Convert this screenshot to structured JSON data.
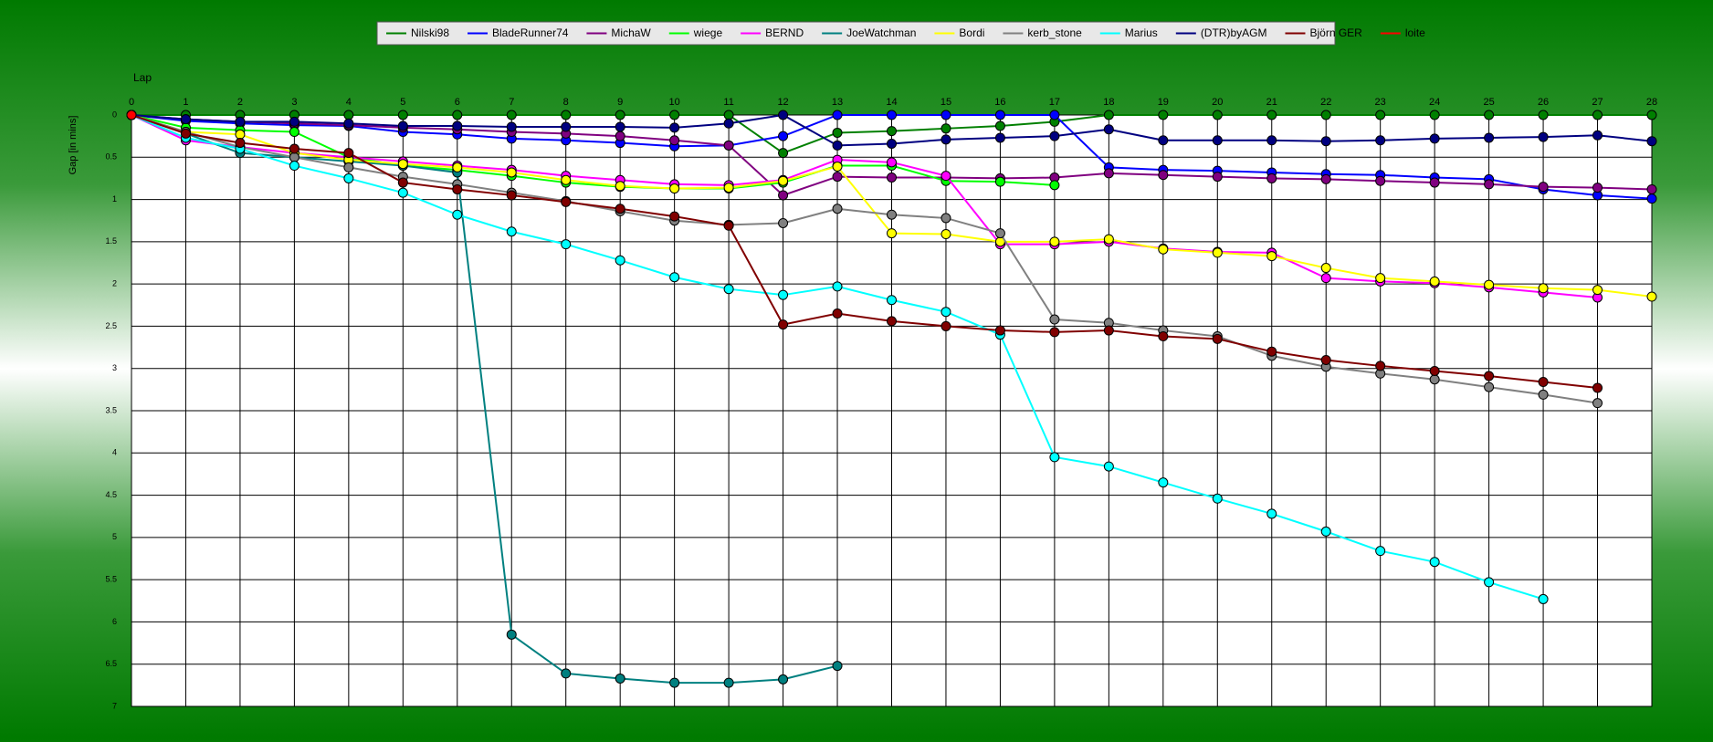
{
  "chart_data": {
    "type": "line",
    "x_label": "Lap",
    "y_label": "Gap [in mins]",
    "x": [
      0,
      1,
      2,
      3,
      4,
      5,
      6,
      7,
      8,
      9,
      10,
      11,
      12,
      13,
      14,
      15,
      16,
      17,
      18,
      19,
      20,
      21,
      22,
      23,
      24,
      25,
      26,
      27,
      28
    ],
    "xlim": [
      0,
      28
    ],
    "xticks": [
      0,
      1,
      2,
      3,
      4,
      5,
      6,
      7,
      8,
      9,
      10,
      11,
      12,
      13,
      14,
      15,
      16,
      17,
      18,
      19,
      20,
      21,
      22,
      23,
      24,
      25,
      26,
      27,
      28
    ],
    "ylim": [
      0,
      7
    ],
    "yticks": [
      0,
      0.5,
      1,
      1.5,
      2,
      2.5,
      3,
      3.5,
      4,
      4.5,
      5,
      5.5,
      6,
      6.5,
      7
    ],
    "y_inverted": true,
    "grid": true,
    "legend": "top",
    "series": [
      {
        "name": "Nilski98",
        "color": "#008000",
        "values": [
          0,
          0,
          0,
          0,
          0,
          0,
          0,
          0,
          0,
          0,
          0,
          0,
          0.45,
          0.21,
          0.19,
          0.16,
          0.13,
          0.08,
          0,
          0,
          0,
          0,
          0,
          0,
          0,
          0,
          0,
          0,
          0
        ]
      },
      {
        "name": "BladeRunner74",
        "color": "#0000ff",
        "values": [
          0,
          0.07,
          0.1,
          0.12,
          0.13,
          0.2,
          0.23,
          0.28,
          0.3,
          0.33,
          0.37,
          0.36,
          0.25,
          0,
          0,
          0,
          0,
          0,
          0.62,
          0.65,
          0.66,
          0.68,
          0.7,
          0.71,
          0.74,
          0.76,
          0.88,
          0.95,
          0.99
        ]
      },
      {
        "name": "MichaW",
        "color": "#800080",
        "values": [
          0,
          0.05,
          0.08,
          0.1,
          0.12,
          0.15,
          0.17,
          0.2,
          0.22,
          0.25,
          0.3,
          0.36,
          0.95,
          0.73,
          0.74,
          0.74,
          0.75,
          0.74,
          0.69,
          0.71,
          0.73,
          0.75,
          0.76,
          0.78,
          0.8,
          0.82,
          0.85,
          0.86,
          0.88
        ]
      },
      {
        "name": "wiege",
        "color": "#00ff00",
        "values": [
          0,
          0.15,
          0.18,
          0.2,
          0.5,
          0.6,
          0.65,
          0.72,
          0.8,
          0.85,
          0.87,
          0.87,
          0.8,
          0.6,
          0.6,
          0.78,
          0.79,
          0.83,
          null,
          null,
          null,
          null,
          null,
          null,
          null,
          null,
          null,
          null,
          null
        ]
      },
      {
        "name": "BERND",
        "color": "#ff00ff",
        "values": [
          0,
          0.3,
          0.38,
          0.45,
          0.5,
          0.55,
          0.6,
          0.65,
          0.72,
          0.77,
          0.82,
          0.83,
          0.77,
          0.53,
          0.56,
          0.72,
          1.53,
          1.53,
          1.5,
          1.58,
          1.62,
          1.63,
          1.93,
          1.97,
          1.99,
          2.04,
          2.1,
          2.16,
          null
        ]
      },
      {
        "name": "JoeWatchman",
        "color": "#008080",
        "values": [
          0,
          0.22,
          0.45,
          0.5,
          0.55,
          0.6,
          0.68,
          6.15,
          6.61,
          6.67,
          6.72,
          6.72,
          6.68,
          6.52,
          null,
          null,
          null,
          null,
          null,
          null,
          null,
          null,
          null,
          null,
          null,
          null,
          null,
          null,
          null
        ]
      },
      {
        "name": "Bordi",
        "color": "#ffff00",
        "values": [
          0,
          0.2,
          0.23,
          0.45,
          0.53,
          0.58,
          0.62,
          0.68,
          0.77,
          0.84,
          0.87,
          0.86,
          0.78,
          0.61,
          1.4,
          1.41,
          1.5,
          1.5,
          1.47,
          1.59,
          1.63,
          1.67,
          1.81,
          1.93,
          1.97,
          2.01,
          2.05,
          2.07,
          2.15
        ]
      },
      {
        "name": "kerb_stone",
        "color": "#808080",
        "values": [
          0,
          0.2,
          0.38,
          0.5,
          0.62,
          0.73,
          0.82,
          0.92,
          1.02,
          1.14,
          1.25,
          1.3,
          1.28,
          1.11,
          1.18,
          1.22,
          1.4,
          2.42,
          2.46,
          2.55,
          2.62,
          2.85,
          2.98,
          3.06,
          3.13,
          3.22,
          3.31,
          3.41,
          null
        ]
      },
      {
        "name": "Marius",
        "color": "#00ffff",
        "values": [
          0,
          0.27,
          0.4,
          0.6,
          0.75,
          0.92,
          1.18,
          1.38,
          1.53,
          1.72,
          1.92,
          2.06,
          2.13,
          2.03,
          2.19,
          2.33,
          2.6,
          4.05,
          4.16,
          4.35,
          4.54,
          4.72,
          4.93,
          5.16,
          5.29,
          5.53,
          5.73,
          null,
          null
        ]
      },
      {
        "name": "(DTR)byAGM",
        "color": "#000080",
        "values": [
          0,
          0.05,
          0.08,
          0.08,
          0.1,
          0.13,
          0.13,
          0.14,
          0.14,
          0.14,
          0.15,
          0.1,
          0,
          0.36,
          0.34,
          0.29,
          0.27,
          0.25,
          0.17,
          0.3,
          0.3,
          0.3,
          0.31,
          0.3,
          0.28,
          0.27,
          0.26,
          0.24,
          0.31
        ]
      },
      {
        "name": "Björn GER",
        "color": "#800000",
        "values": [
          0,
          0.22,
          0.33,
          0.4,
          0.45,
          0.8,
          0.88,
          0.95,
          1.03,
          1.11,
          1.2,
          1.31,
          2.48,
          2.35,
          2.44,
          2.5,
          2.55,
          2.57,
          2.55,
          2.62,
          2.65,
          2.8,
          2.9,
          2.97,
          3.03,
          3.09,
          3.16,
          3.23,
          null
        ]
      },
      {
        "name": "loite",
        "color": "#ff0000",
        "values": [
          0,
          null,
          null,
          null,
          null,
          null,
          null,
          null,
          null,
          null,
          null,
          null,
          null,
          null,
          null,
          null,
          null,
          null,
          null,
          null,
          null,
          null,
          null,
          null,
          null,
          null,
          null,
          null,
          null
        ]
      }
    ]
  }
}
